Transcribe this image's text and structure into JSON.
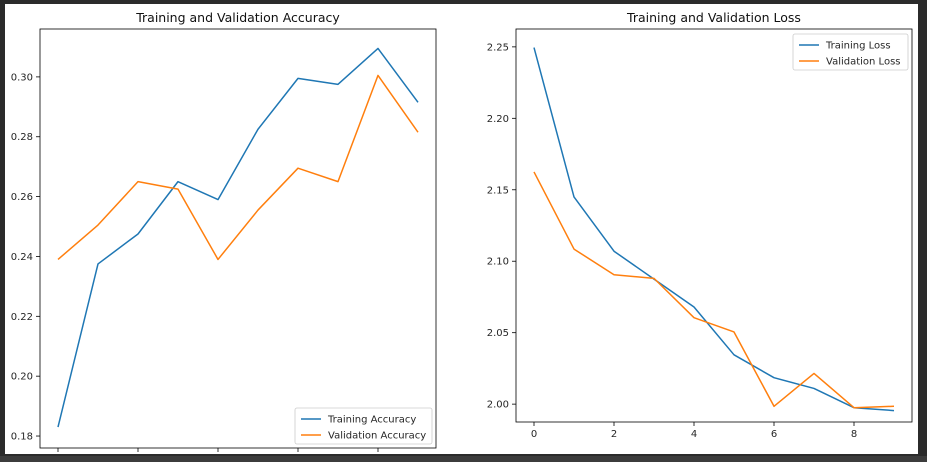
{
  "chart_data": [
    {
      "type": "line",
      "title": "Training and Validation Accuracy",
      "xlabel": "",
      "ylabel": "",
      "x": [
        0,
        1,
        2,
        3,
        4,
        5,
        6,
        7,
        8,
        9
      ],
      "xlim": [
        -0.45,
        9.45
      ],
      "ylim": [
        0.176,
        0.316
      ],
      "xticks": [
        "0",
        "2",
        "4",
        "6",
        "8"
      ],
      "yticks": [
        "0.18",
        "0.20",
        "0.22",
        "0.24",
        "0.26",
        "0.28",
        "0.30"
      ],
      "grid": false,
      "legend_position": "lower-right",
      "series": [
        {
          "name": "Training Accuracy",
          "color": "#1f77b4",
          "values": [
            0.183,
            0.2375,
            0.2475,
            0.265,
            0.259,
            0.2825,
            0.2995,
            0.2975,
            0.3095,
            0.2915
          ]
        },
        {
          "name": "Validation Accuracy",
          "color": "#ff7f0e",
          "values": [
            0.239,
            0.2505,
            0.265,
            0.2625,
            0.239,
            0.2555,
            0.2695,
            0.265,
            0.3005,
            0.2815
          ]
        }
      ]
    },
    {
      "type": "line",
      "title": "Training and Validation Loss",
      "xlabel": "",
      "ylabel": "",
      "x": [
        0,
        1,
        2,
        3,
        4,
        5,
        6,
        7,
        8,
        9
      ],
      "xlim": [
        -0.45,
        9.45
      ],
      "ylim": [
        1.9875,
        2.2625
      ],
      "xticks": [
        "0",
        "2",
        "4",
        "6",
        "8"
      ],
      "yticks": [
        "2.00",
        "2.05",
        "2.10",
        "2.15",
        "2.20",
        "2.25"
      ],
      "grid": false,
      "legend_position": "upper-right",
      "series": [
        {
          "name": "Training Loss",
          "color": "#1f77b4",
          "values": [
            2.2495,
            2.145,
            2.107,
            2.0875,
            2.068,
            2.0345,
            2.0185,
            2.011,
            1.9975,
            1.9955
          ]
        },
        {
          "name": "Validation Loss",
          "color": "#ff7f0e",
          "values": [
            2.1625,
            2.1085,
            2.0905,
            2.088,
            2.0605,
            2.0505,
            1.9985,
            2.0215,
            1.9975,
            1.9985
          ]
        }
      ]
    }
  ]
}
